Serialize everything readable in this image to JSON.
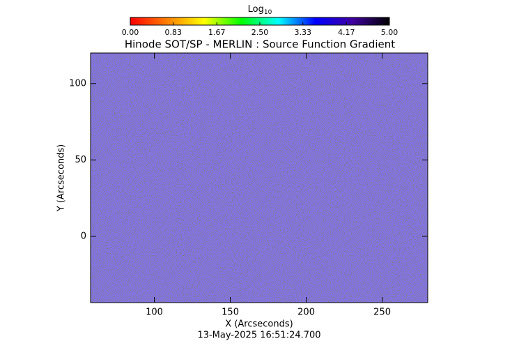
{
  "chart_data": {
    "type": "heatmap",
    "title": "Hinode SOT/SP - MERLIN : Source Function Gradient",
    "x_label": "X (Arcseconds)",
    "y_label": "Y (Arcseconds)",
    "footer": "13-May-2025 16:51:24.700",
    "xlim": [
      58,
      280
    ],
    "xticks": [
      100,
      150,
      200,
      250
    ],
    "ylim": [
      -43.4,
      120
    ],
    "yticks": [
      0,
      50,
      100
    ],
    "colorbar": {
      "label": "Log",
      "label_sub": "10",
      "lim": [
        0,
        5
      ],
      "ticks": [
        {
          "value": 0,
          "label": "0.00"
        },
        {
          "value": 0.83,
          "label": "0.83"
        },
        {
          "value": 1.67,
          "label": "1.67"
        },
        {
          "value": 2.5,
          "label": "2.50"
        },
        {
          "value": 3.33,
          "label": "3.33"
        },
        {
          "value": 4.17,
          "label": "4.17"
        },
        {
          "value": 5,
          "label": "5.00"
        }
      ],
      "colors": [
        "#ff0000",
        "#ff8000",
        "#ffff00",
        "#00ff00",
        "#00ffff",
        "#0000ff",
        "#4000a0",
        "#000000"
      ]
    }
  }
}
